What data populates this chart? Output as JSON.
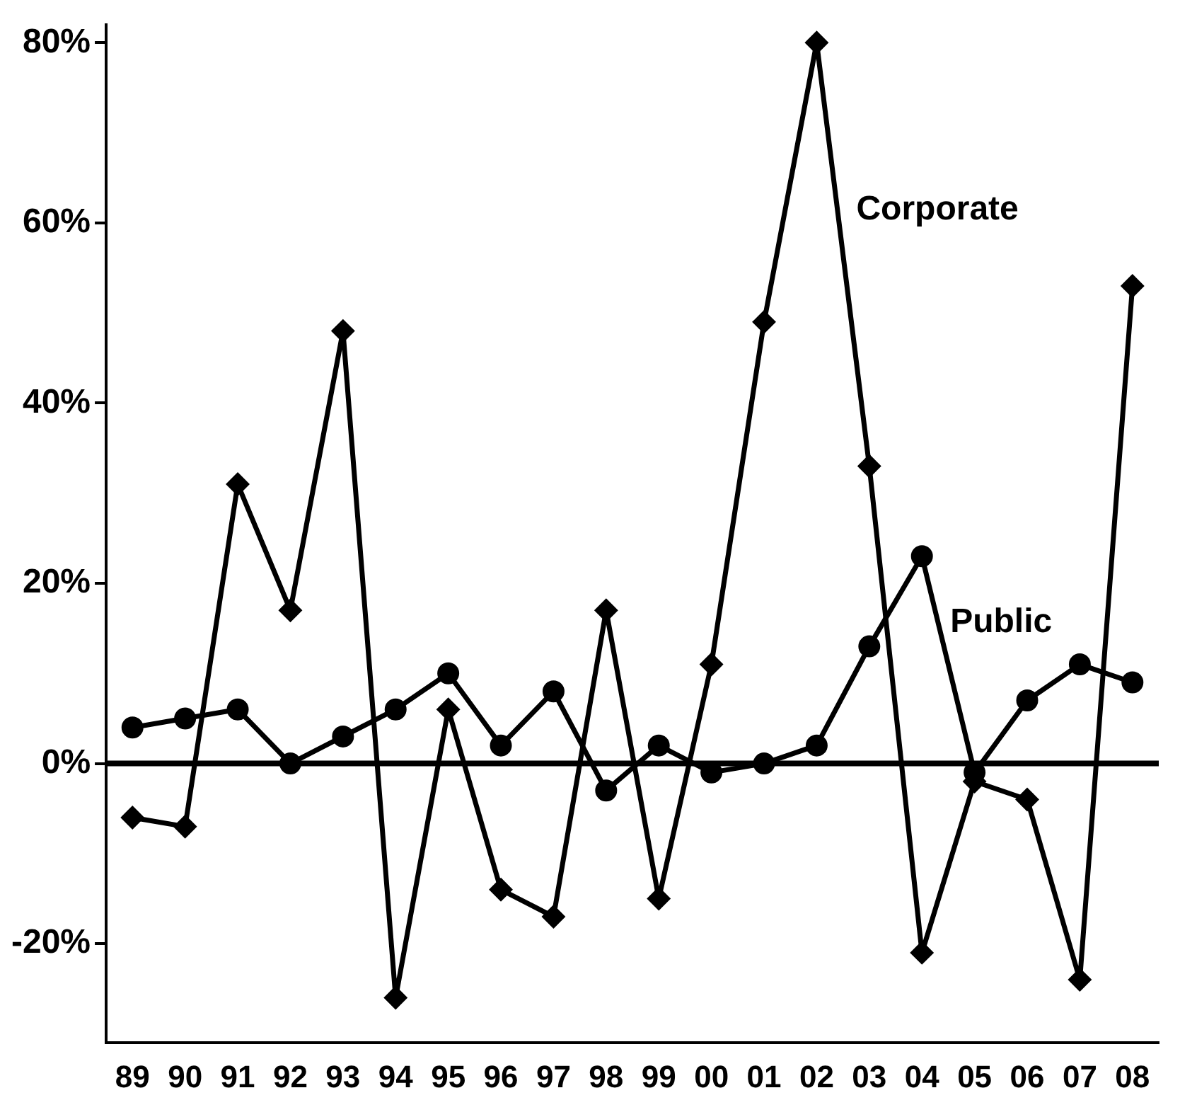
{
  "chart_data": {
    "type": "line",
    "categories": [
      "89",
      "90",
      "91",
      "92",
      "93",
      "94",
      "95",
      "96",
      "97",
      "98",
      "99",
      "00",
      "01",
      "02",
      "03",
      "04",
      "05",
      "06",
      "07",
      "08"
    ],
    "series": [
      {
        "name": "Corporate",
        "color": "#000000",
        "marker": "diamond",
        "values": [
          -6,
          -7,
          31,
          17,
          48,
          -26,
          6,
          -14,
          -17,
          17,
          -15,
          11,
          49,
          80,
          33,
          -21,
          -2,
          -4,
          -24,
          53
        ]
      },
      {
        "name": "Public",
        "color": "#000000",
        "marker": "circle",
        "values": [
          4,
          5,
          6,
          0,
          3,
          6,
          10,
          2,
          8,
          -3,
          2,
          -1,
          0,
          2,
          13,
          23,
          -1,
          7,
          11,
          9
        ]
      }
    ],
    "ylim": [
      -31,
      82
    ],
    "yticks": [
      {
        "value": -20,
        "label": "-20%"
      },
      {
        "value": 0,
        "label": "0%"
      },
      {
        "value": 20,
        "label": "20%"
      },
      {
        "value": 40,
        "label": "40%"
      },
      {
        "value": 60,
        "label": "60%"
      },
      {
        "value": 80,
        "label": "80%"
      }
    ],
    "ref_lines": [
      {
        "axis": "y",
        "value": 0,
        "color": "#000000"
      }
    ],
    "grid": false,
    "legend": false,
    "line_style": "solid"
  }
}
